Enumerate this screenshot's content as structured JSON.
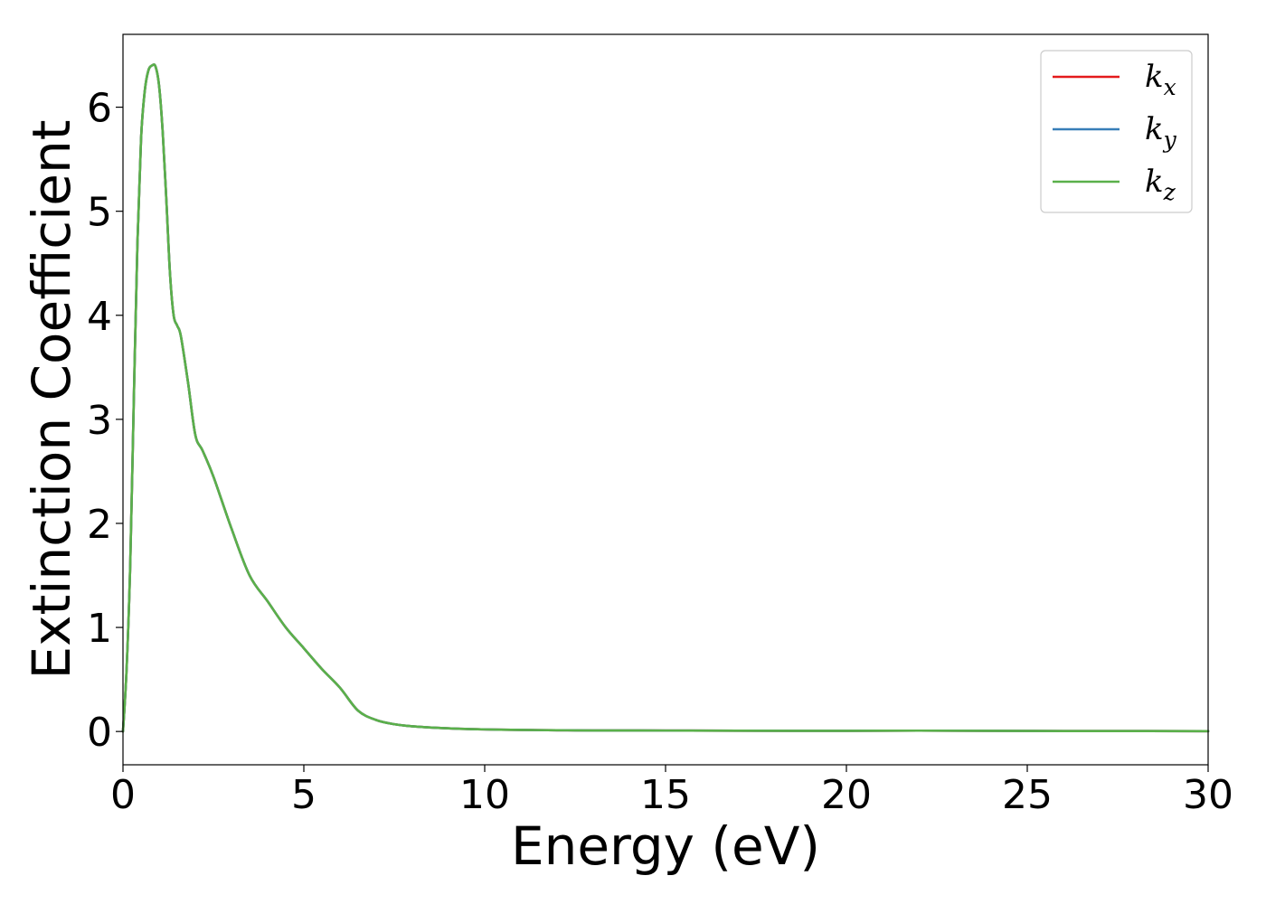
{
  "chart_data": {
    "type": "line",
    "title": "",
    "xlabel": "Energy (eV)",
    "ylabel": "Extinction Coefficient",
    "xlim": [
      0,
      30
    ],
    "ylim": [
      -0.32,
      6.7
    ],
    "xticks": [
      0,
      5,
      10,
      15,
      20,
      25,
      30
    ],
    "yticks": [
      0,
      1,
      2,
      3,
      4,
      5,
      6
    ],
    "grid": false,
    "legend_position": "top-right",
    "x": [
      0,
      0.1,
      0.2,
      0.3,
      0.4,
      0.5,
      0.6,
      0.7,
      0.8,
      0.9,
      1.0,
      1.1,
      1.2,
      1.3,
      1.4,
      1.5,
      1.6,
      1.8,
      2.0,
      2.2,
      2.5,
      3.0,
      3.5,
      4.0,
      4.5,
      5.0,
      5.5,
      6.0,
      6.5,
      7.0,
      7.5,
      8.0,
      9.0,
      10.0,
      11.0,
      12.0,
      13.0,
      15.0,
      17.0,
      20.0,
      22.0,
      25.0,
      28.0,
      30.0
    ],
    "series": [
      {
        "name": "k_x",
        "label_base": "k",
        "label_sub": "x",
        "color": "#e41a1c",
        "values": [
          0,
          0.6,
          1.6,
          3.2,
          4.7,
          5.7,
          6.15,
          6.35,
          6.4,
          6.39,
          6.2,
          5.75,
          5.1,
          4.4,
          4.0,
          3.9,
          3.8,
          3.35,
          2.85,
          2.7,
          2.45,
          1.95,
          1.5,
          1.25,
          1.0,
          0.8,
          0.6,
          0.42,
          0.2,
          0.11,
          0.07,
          0.05,
          0.03,
          0.02,
          0.015,
          0.012,
          0.01,
          0.009,
          0.007,
          0.006,
          0.008,
          0.005,
          0.004,
          0.003
        ]
      },
      {
        "name": "k_y",
        "label_base": "k",
        "label_sub": "y",
        "color": "#377eb8",
        "values": [
          0,
          0.6,
          1.6,
          3.2,
          4.7,
          5.7,
          6.15,
          6.35,
          6.4,
          6.39,
          6.2,
          5.75,
          5.1,
          4.4,
          4.0,
          3.9,
          3.8,
          3.35,
          2.85,
          2.7,
          2.45,
          1.95,
          1.5,
          1.25,
          1.0,
          0.8,
          0.6,
          0.42,
          0.2,
          0.11,
          0.07,
          0.05,
          0.03,
          0.02,
          0.015,
          0.012,
          0.01,
          0.009,
          0.007,
          0.006,
          0.008,
          0.005,
          0.004,
          0.003
        ]
      },
      {
        "name": "k_z",
        "label_base": "k",
        "label_sub": "z",
        "color": "#5ab04a",
        "values": [
          0,
          0.6,
          1.6,
          3.2,
          4.7,
          5.7,
          6.15,
          6.35,
          6.4,
          6.39,
          6.2,
          5.75,
          5.1,
          4.4,
          4.0,
          3.9,
          3.8,
          3.35,
          2.85,
          2.7,
          2.45,
          1.95,
          1.5,
          1.25,
          1.0,
          0.8,
          0.6,
          0.42,
          0.2,
          0.11,
          0.07,
          0.05,
          0.03,
          0.02,
          0.015,
          0.012,
          0.01,
          0.009,
          0.007,
          0.006,
          0.008,
          0.005,
          0.004,
          0.003
        ]
      }
    ]
  }
}
